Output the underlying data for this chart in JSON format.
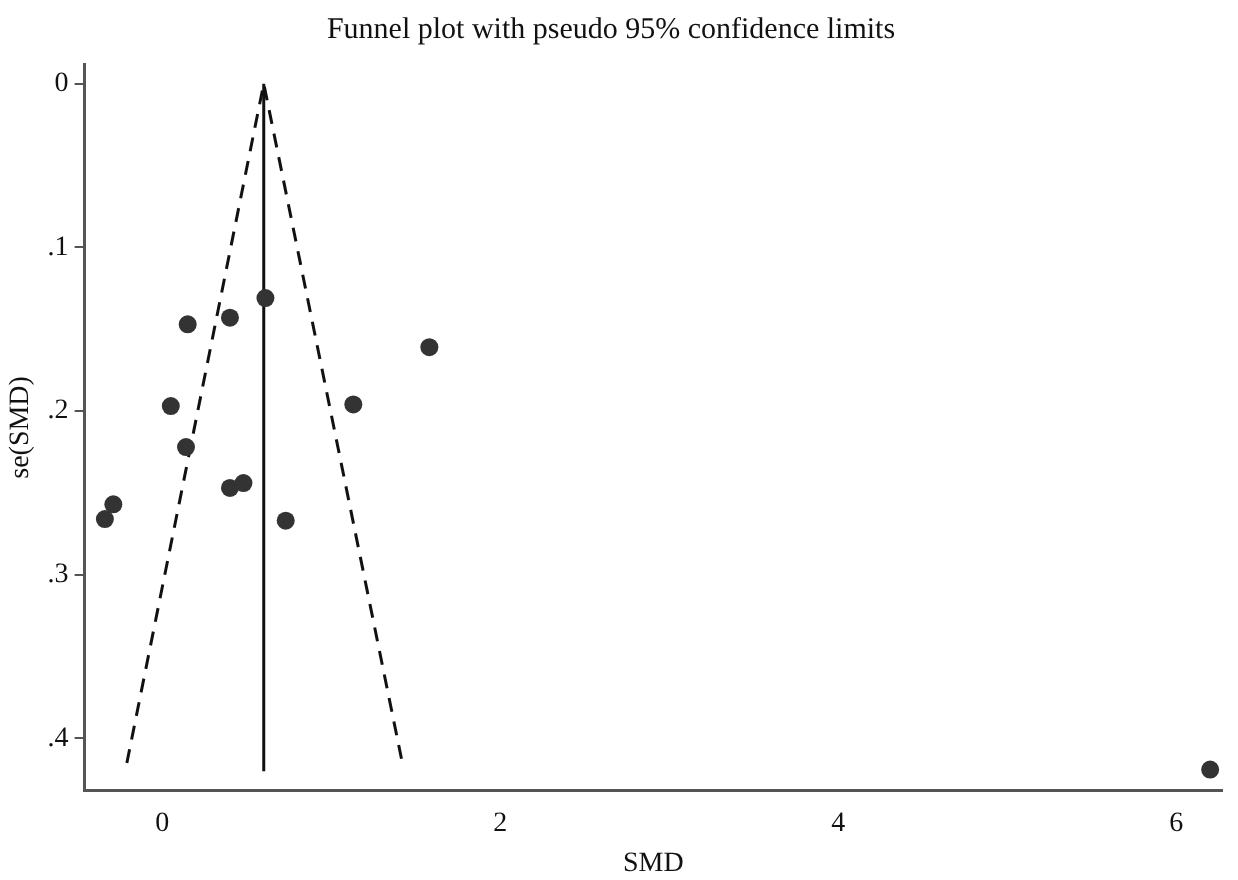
{
  "chart_data": {
    "type": "scatter",
    "title": "Funnel plot with pseudo 95% confidence limits",
    "xlabel": "SMD",
    "ylabel": "se(SMD)",
    "series": [
      {
        "color": "#333333",
        "marker": "circle",
        "x": [
          0.61,
          0.4,
          0.15,
          1.58,
          0.05,
          1.13,
          0.14,
          0.4,
          0.48,
          -0.29,
          -0.34,
          0.73,
          6.2
        ],
        "values": [
          0.131,
          0.143,
          0.147,
          0.161,
          0.197,
          0.196,
          0.222,
          0.247,
          0.244,
          0.257,
          0.266,
          0.267,
          0.419
        ]
      },
      {
        "type": "line",
        "color": "#111111",
        "line_style": "dashed",
        "marker": "none",
        "x": [
          -0.21,
          0.6,
          1.42
        ],
        "values": [
          0.415,
          0,
          0.415
        ]
      },
      {
        "type": "line",
        "color": "#111111",
        "line_style": "solid",
        "marker": "none",
        "x": [
          0.6,
          0.6
        ],
        "values": [
          0.42,
          0
        ]
      }
    ],
    "xlim": [
      -0.46,
      6.27
    ],
    "xticks": [
      0,
      2,
      4,
      6
    ],
    "ylim": [
      0.432,
      -0.012
    ],
    "yticks": [
      {
        "value": 0,
        "label": "0"
      },
      {
        "value": 0.1,
        "label": ".1"
      },
      {
        "value": 0.2,
        "label": ".2"
      },
      {
        "value": 0.3,
        "label": ".3"
      },
      {
        "value": 0.4,
        "label": ".4"
      }
    ],
    "grid": false,
    "legend": false
  }
}
